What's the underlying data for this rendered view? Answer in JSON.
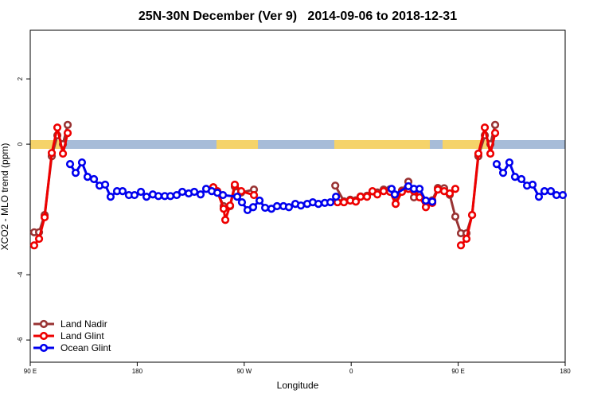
{
  "chart_data": {
    "type": "line",
    "title": "25N-30N December (Ver 9)   2014-09-06 to 2018-12-31",
    "xlabel": "Longitude",
    "ylabel": "XCO2 - MLO trend (ppm)",
    "xlim": [
      90,
      540
    ],
    "ylim": [
      -6.68,
      3.49
    ],
    "xticks": [
      {
        "value": 90,
        "label": "90 E"
      },
      {
        "value": 180,
        "label": "180"
      },
      {
        "value": 270,
        "label": "90 W"
      },
      {
        "value": 360,
        "label": "0"
      },
      {
        "value": 450,
        "label": "90 E"
      },
      {
        "value": 540,
        "label": "180"
      }
    ],
    "yticks": [
      -6,
      -4,
      0,
      2
    ],
    "legend": "bottomleft",
    "series": [
      {
        "name": "Land Nadir",
        "color": "#993333",
        "x": [
          93.3,
          97.4,
          102.1,
          108.1,
          112.8,
          117.5,
          121.5,
          null,
          244.0,
          247.4,
          252.7,
          258.1,
          262.1,
          267.5,
          278.2,
          null,
          346.6,
          353.9,
          359.2,
          363.9,
          367.9,
          373.3,
          377.9,
          382.0,
          387.3,
          392.7,
          397.4,
          402.7,
          408.1,
          412.8,
          417.5,
          422.8,
          428.2,
          432.9,
          438.2,
          442.9,
          447.6,
          452.3,
          457.0,
          461.7,
          467.0,
          472.4,
          477.1,
          481.1
        ],
        "values": [
          -2.7,
          -2.7,
          -2.17,
          -0.37,
          0.27,
          0.0,
          0.59,
          null,
          -1.32,
          -1.46,
          -1.9,
          -1.9,
          -1.3,
          -1.48,
          -1.39,
          null,
          -1.27,
          -1.75,
          -1.7,
          -1.72,
          -1.6,
          -1.58,
          -1.45,
          -1.48,
          -1.39,
          -1.38,
          -1.6,
          -1.42,
          -1.15,
          -1.63,
          -1.55,
          -1.78,
          -1.72,
          -1.34,
          -1.35,
          -1.55,
          -2.22,
          -2.73,
          -2.73,
          -2.17,
          -0.37,
          0.27,
          0.0,
          0.59
        ]
      },
      {
        "name": "Land Glint",
        "color": "#ee0000",
        "x": [
          93.3,
          97.4,
          102.1,
          108.1,
          112.8,
          117.5,
          121.5,
          null,
          244.0,
          247.4,
          252.7,
          254.1,
          258.1,
          262.1,
          267.5,
          278.2,
          null,
          348.5,
          353.9,
          359.2,
          363.9,
          367.9,
          373.3,
          377.9,
          382.0,
          387.3,
          392.7,
          397.4,
          402.7,
          408.1,
          412.8,
          417.5,
          422.8,
          428.2,
          432.9,
          438.2,
          442.9,
          447.6,
          null,
          452.3,
          457.0,
          461.7,
          467.0,
          472.4,
          477.1,
          481.1
        ],
        "values": [
          -3.1,
          -2.9,
          -2.24,
          -0.27,
          0.51,
          -0.29,
          0.34,
          null,
          -1.32,
          -1.44,
          -1.98,
          -2.32,
          -1.88,
          -1.24,
          -1.44,
          -1.56,
          null,
          -1.78,
          -1.78,
          -1.73,
          -1.76,
          -1.61,
          -1.61,
          -1.44,
          -1.54,
          -1.44,
          -1.46,
          -1.83,
          -1.46,
          -1.37,
          -1.44,
          -1.63,
          -1.93,
          -1.8,
          -1.39,
          -1.44,
          -1.51,
          -1.37,
          null,
          -3.1,
          -2.9,
          -2.17,
          -0.29,
          0.51,
          -0.29,
          0.34
        ]
      },
      {
        "name": "Ocean Glint",
        "color": "#0000ee",
        "x": [
          123.5,
          128.2,
          133.5,
          138.2,
          143.6,
          148.3,
          153.0,
          157.6,
          163.0,
          167.7,
          173.0,
          177.7,
          183.1,
          187.8,
          193.1,
          197.8,
          203.2,
          207.9,
          213.2,
          217.9,
          223.3,
          228.0,
          233.3,
          238.0,
          242.7,
          247.4,
          252.1,
          264.1,
          268.1,
          272.8,
          277.5,
          282.9,
          287.6,
          292.9,
          297.6,
          303.0,
          307.6,
          313.0,
          317.7,
          323.0,
          327.7,
          332.4,
          337.8,
          342.5,
          347.2,
          null,
          394.0,
          396.7,
          408.1,
          412.8,
          417.5,
          422.8,
          428.2,
          null,
          482.4,
          487.8,
          493.1,
          497.8,
          503.2,
          507.9,
          512.6,
          517.9,
          522.6,
          528.0,
          532.7,
          538.0
        ],
        "values": [
          -0.61,
          -0.88,
          -0.56,
          -1.0,
          -1.07,
          -1.27,
          -1.24,
          -1.61,
          -1.44,
          -1.44,
          -1.56,
          -1.56,
          -1.46,
          -1.61,
          -1.54,
          -1.59,
          -1.59,
          -1.59,
          -1.56,
          -1.46,
          -1.51,
          -1.46,
          -1.54,
          -1.37,
          -1.44,
          -1.49,
          -1.56,
          -1.61,
          -1.78,
          -2.02,
          -1.93,
          -1.73,
          -1.95,
          -1.98,
          -1.9,
          -1.9,
          -1.93,
          -1.83,
          -1.88,
          -1.83,
          -1.78,
          -1.83,
          -1.8,
          -1.78,
          -1.61,
          null,
          -1.37,
          -1.54,
          -1.29,
          -1.37,
          -1.37,
          -1.73,
          -1.76,
          null,
          -0.61,
          -0.88,
          -0.56,
          -1.0,
          -1.07,
          -1.27,
          -1.24,
          -1.61,
          -1.44,
          -1.44,
          -1.56,
          -1.56
        ]
      }
    ]
  }
}
